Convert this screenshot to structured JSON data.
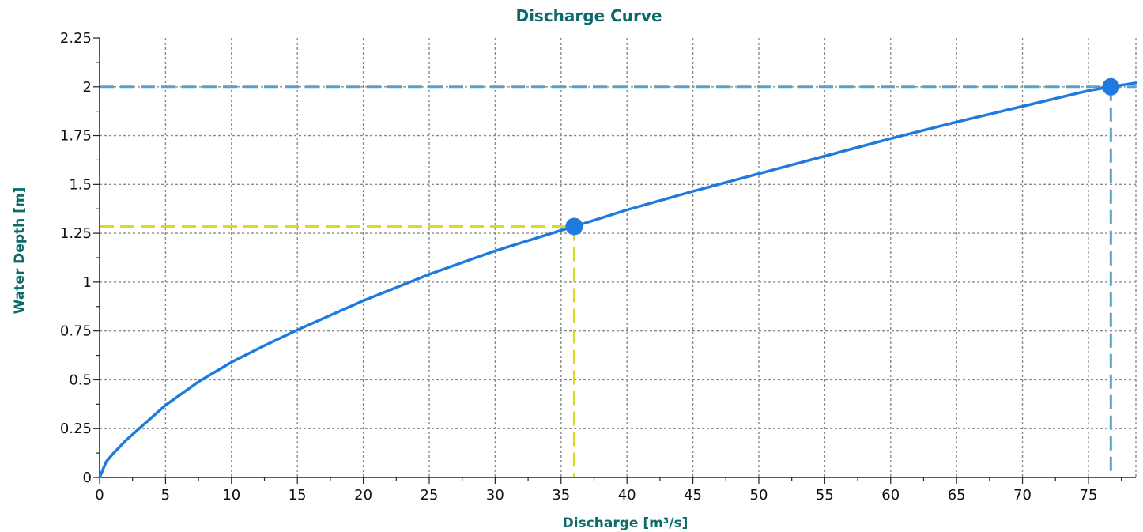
{
  "chart_data": {
    "type": "line",
    "title": "Discharge Curve",
    "xlabel": "Discharge [m³/s]",
    "ylabel": "Water Depth [m]",
    "xlim": [
      0,
      78.6
    ],
    "ylim": [
      0,
      2.25
    ],
    "xticks": [
      "0",
      "5",
      "10",
      "15",
      "20",
      "25",
      "30",
      "35",
      "40",
      "45",
      "50",
      "55",
      "60",
      "65",
      "70",
      "75"
    ],
    "yticks": [
      "0",
      "0.25",
      "0.5",
      "0.75",
      "1",
      "1.25",
      "1.5",
      "1.75",
      "2",
      "2.25"
    ],
    "grid": true,
    "series": [
      {
        "color": "#1f7ae0",
        "x": [
          0,
          0.5,
          1,
          2,
          3,
          5,
          7.5,
          10,
          12.5,
          15,
          20,
          25,
          30,
          35,
          36,
          40,
          45,
          50,
          55,
          60,
          65,
          70,
          75,
          76.7,
          78.6
        ],
        "y": [
          0,
          0.08,
          0.12,
          0.19,
          0.25,
          0.37,
          0.49,
          0.59,
          0.675,
          0.755,
          0.905,
          1.04,
          1.16,
          1.265,
          1.285,
          1.37,
          1.465,
          1.555,
          1.645,
          1.735,
          1.82,
          1.9,
          1.98,
          2.0,
          2.02
        ]
      }
    ],
    "markers": [
      {
        "x": 36.0,
        "y": 1.285,
        "line_color": "#d8dc1e",
        "marker_color": "#1f7ae0"
      },
      {
        "x": 76.7,
        "y": 2.0,
        "line_color": "#5aa3c8",
        "marker_color": "#1f7ae0"
      }
    ]
  }
}
